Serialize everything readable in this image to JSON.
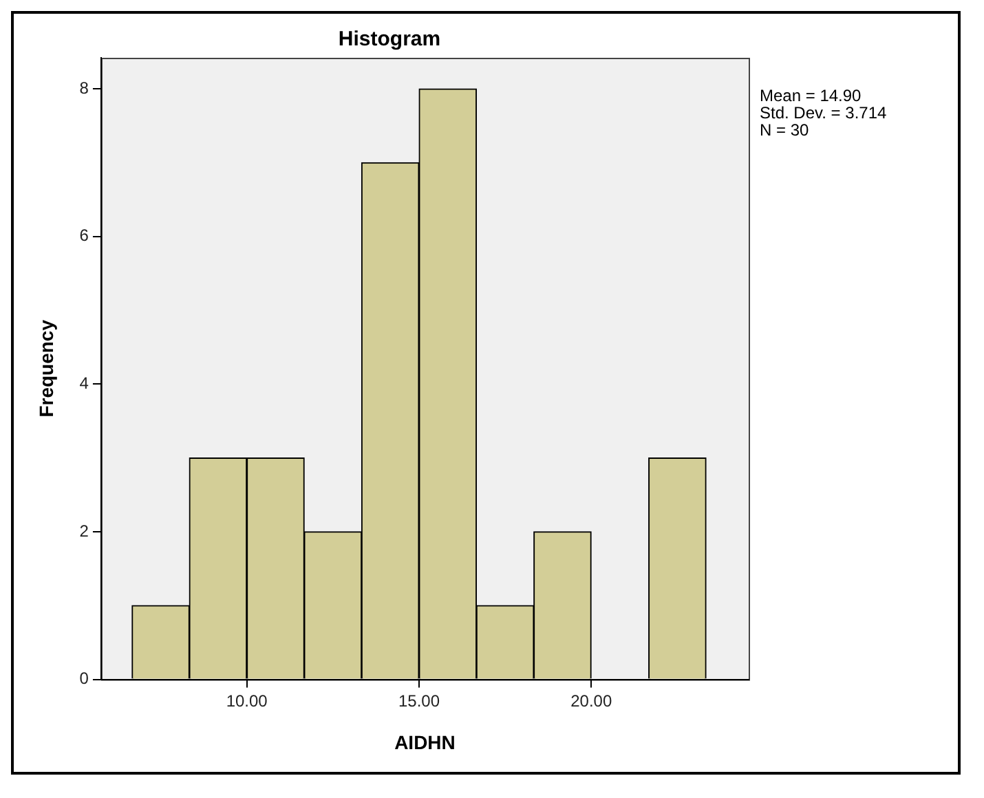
{
  "chart_data": {
    "type": "histogram",
    "title": "Histogram",
    "xlabel": "AIDHN",
    "ylabel": "Frequency",
    "bins": [
      6.67,
      8.33,
      10,
      11.67,
      13.33,
      15,
      16.67,
      18.33,
      20,
      21.67,
      23.33
    ],
    "values": [
      1,
      3,
      3,
      2,
      7,
      8,
      1,
      2,
      0,
      3
    ],
    "color": "#d3ce97",
    "xlim": [
      5.77,
      24.57
    ],
    "xticks": [
      {
        "value": 10,
        "label": "10.00"
      },
      {
        "value": 15,
        "label": "15.00"
      },
      {
        "value": 20,
        "label": "20.00"
      }
    ],
    "ylim": [
      0,
      8.42
    ],
    "yticks": [
      0,
      2,
      4,
      6,
      8
    ],
    "grid": false,
    "legend": false,
    "annotations": [
      "Mean = 14.90",
      "Std. Dev. = 3.714",
      "N = 30"
    ]
  }
}
